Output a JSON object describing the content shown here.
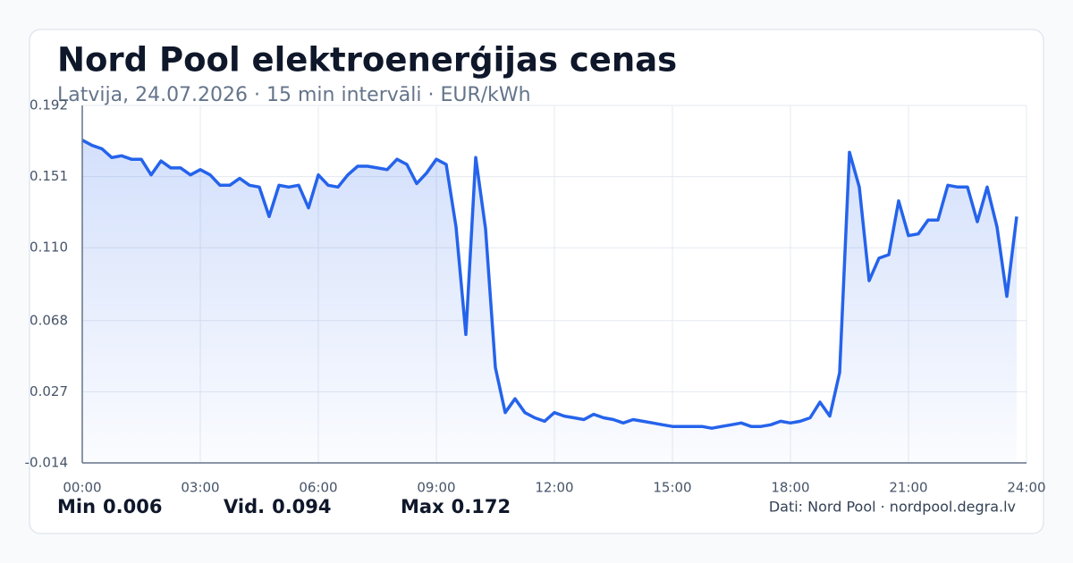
{
  "chart_data": {
    "type": "line",
    "title": "Nord Pool elektroenerģijas cenas",
    "subtitle": "Latvija, 24.07.2026 · 15 min intervāli · EUR/kWh",
    "x": [
      0,
      0.25,
      0.5,
      0.75,
      1,
      1.25,
      1.5,
      1.75,
      2,
      2.25,
      2.5,
      2.75,
      3,
      3.25,
      3.5,
      3.75,
      4,
      4.25,
      4.5,
      4.75,
      5,
      5.25,
      5.5,
      5.75,
      6,
      6.25,
      6.5,
      6.75,
      7,
      7.25,
      7.5,
      7.75,
      8,
      8.25,
      8.5,
      8.75,
      9,
      9.25,
      9.5,
      9.75,
      10,
      10.25,
      10.5,
      10.75,
      11,
      11.25,
      11.5,
      11.75,
      12,
      12.25,
      12.5,
      12.75,
      13,
      13.25,
      13.5,
      13.75,
      14,
      14.25,
      14.5,
      14.75,
      15,
      15.25,
      15.5,
      15.75,
      16,
      16.25,
      16.5,
      16.75,
      17,
      17.25,
      17.5,
      17.75,
      18,
      18.25,
      18.5,
      18.75,
      19,
      19.25,
      19.5,
      19.75,
      20,
      20.25,
      20.5,
      20.75,
      21,
      21.25,
      21.5,
      21.75,
      22,
      22.25,
      22.5,
      22.75,
      23,
      23.25,
      23.5,
      23.75
    ],
    "values": [
      0.172,
      0.169,
      0.167,
      0.162,
      0.163,
      0.161,
      0.161,
      0.152,
      0.16,
      0.156,
      0.156,
      0.152,
      0.155,
      0.152,
      0.146,
      0.146,
      0.15,
      0.146,
      0.145,
      0.128,
      0.146,
      0.145,
      0.146,
      0.133,
      0.152,
      0.146,
      0.145,
      0.152,
      0.157,
      0.157,
      0.156,
      0.155,
      0.161,
      0.158,
      0.147,
      0.153,
      0.161,
      0.158,
      0.122,
      0.06,
      0.162,
      0.121,
      0.041,
      0.015,
      0.023,
      0.015,
      0.012,
      0.01,
      0.015,
      0.013,
      0.012,
      0.011,
      0.014,
      0.012,
      0.011,
      0.009,
      0.011,
      0.01,
      0.009,
      0.008,
      0.007,
      0.007,
      0.007,
      0.007,
      0.006,
      0.007,
      0.008,
      0.009,
      0.007,
      0.007,
      0.008,
      0.01,
      0.009,
      0.01,
      0.012,
      0.021,
      0.013,
      0.038,
      0.165,
      0.145,
      0.091,
      0.104,
      0.106,
      0.137,
      0.117,
      0.118,
      0.126,
      0.126,
      0.146,
      0.145,
      0.145,
      0.125,
      0.145,
      0.122,
      0.082,
      0.128
    ],
    "color": "#2563eb",
    "xlim": [
      0,
      24
    ],
    "xticks": [
      {
        "value": 0,
        "label": "00:00"
      },
      {
        "value": 3,
        "label": "03:00"
      },
      {
        "value": 6,
        "label": "06:00"
      },
      {
        "value": 9,
        "label": "09:00"
      },
      {
        "value": 12,
        "label": "12:00"
      },
      {
        "value": 15,
        "label": "15:00"
      },
      {
        "value": 18,
        "label": "18:00"
      },
      {
        "value": 21,
        "label": "21:00"
      },
      {
        "value": 24,
        "label": "24:00"
      }
    ],
    "ylim": [
      -0.014,
      0.192
    ],
    "yticks": [
      -0.014,
      0.027,
      0.068,
      {
        "value": 0.11,
        "label": "0.110"
      },
      0.151,
      0.192
    ],
    "grid": true,
    "stats": [
      {
        "label": "Min",
        "value": 0.006
      },
      {
        "label": "Vid.",
        "value": 0.094
      },
      {
        "label": "Max",
        "value": 0.172
      }
    ],
    "source": "Dati: Nord Pool · nordpool.degra.lv"
  }
}
